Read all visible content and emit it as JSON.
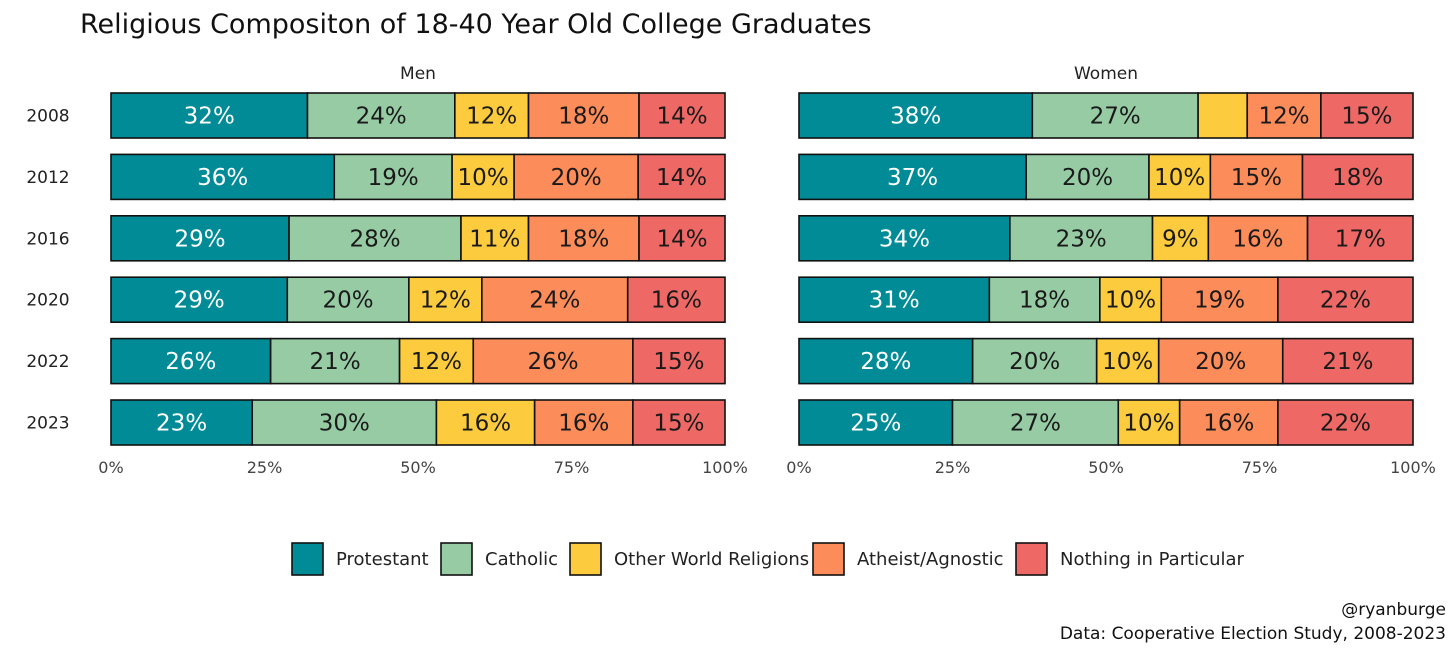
{
  "chart_data": {
    "type": "bar",
    "orientation": "horizontal",
    "stacked": true,
    "title": "Religious Compositon of 18-40 Year Old College Graduates",
    "categories": [
      "2008",
      "2012",
      "2016",
      "2020",
      "2022",
      "2023"
    ],
    "xlim": [
      0,
      100
    ],
    "xticks": [
      "0%",
      "25%",
      "50%",
      "75%",
      "100%"
    ],
    "grid": false,
    "legend_position": "bottom",
    "series_order": [
      "Protestant",
      "Catholic",
      "Other World Religions",
      "Atheist/Agnostic",
      "Nothing in Particular"
    ],
    "colors": {
      "Protestant": "#008b96",
      "Catholic": "#96cba4",
      "Other World Religions": "#fdcb3e",
      "Atheist/Agnostic": "#fc8c59",
      "Nothing in Particular": "#ee6966"
    },
    "label_colors": {
      "Protestant": "#ffffff",
      "Catholic": "#1a1a1a",
      "Other World Religions": "#1a1a1a",
      "Atheist/Agnostic": "#1a1a1a",
      "Nothing in Particular": "#1a1a1a"
    },
    "panels": [
      {
        "name": "Men",
        "series": [
          {
            "name": "Protestant",
            "values": [
              32,
              36,
              29,
              29,
              26,
              23
            ],
            "labels": [
              "32%",
              "36%",
              "29%",
              "29%",
              "26%",
              "23%"
            ]
          },
          {
            "name": "Catholic",
            "values": [
              24,
              19,
              28,
              20,
              21,
              30
            ],
            "labels": [
              "24%",
              "19%",
              "28%",
              "20%",
              "21%",
              "30%"
            ]
          },
          {
            "name": "Other World Religions",
            "values": [
              12,
              10,
              11,
              12,
              12,
              16
            ],
            "labels": [
              "12%",
              "10%",
              "11%",
              "12%",
              "12%",
              "16%"
            ]
          },
          {
            "name": "Atheist/Agnostic",
            "values": [
              18,
              20,
              18,
              24,
              26,
              16
            ],
            "labels": [
              "18%",
              "20%",
              "18%",
              "24%",
              "26%",
              "16%"
            ]
          },
          {
            "name": "Nothing in Particular",
            "values": [
              14,
              14,
              14,
              16,
              15,
              15
            ],
            "labels": [
              "14%",
              "14%",
              "14%",
              "16%",
              "15%",
              "15%"
            ]
          }
        ]
      },
      {
        "name": "Women",
        "series": [
          {
            "name": "Protestant",
            "values": [
              38,
              37,
              34,
              31,
              28,
              25
            ],
            "labels": [
              "38%",
              "37%",
              "34%",
              "31%",
              "28%",
              "25%"
            ]
          },
          {
            "name": "Catholic",
            "values": [
              27,
              20,
              23,
              18,
              20,
              27
            ],
            "labels": [
              "27%",
              "20%",
              "23%",
              "18%",
              "20%",
              "27%"
            ]
          },
          {
            "name": "Other World Religions",
            "values": [
              8,
              10,
              9,
              10,
              10,
              10
            ],
            "labels": [
              "",
              "10%",
              "9%",
              "10%",
              "10%",
              "10%"
            ]
          },
          {
            "name": "Atheist/Agnostic",
            "values": [
              12,
              15,
              16,
              19,
              20,
              16
            ],
            "labels": [
              "12%",
              "15%",
              "16%",
              "19%",
              "20%",
              "16%"
            ]
          },
          {
            "name": "Nothing in Particular",
            "values": [
              15,
              18,
              17,
              22,
              21,
              22
            ],
            "labels": [
              "15%",
              "18%",
              "17%",
              "22%",
              "21%",
              "22%"
            ]
          }
        ]
      }
    ],
    "caption_lines": [
      "@ryanburge",
      "Data: Cooperative Election Study, 2008-2023"
    ]
  }
}
